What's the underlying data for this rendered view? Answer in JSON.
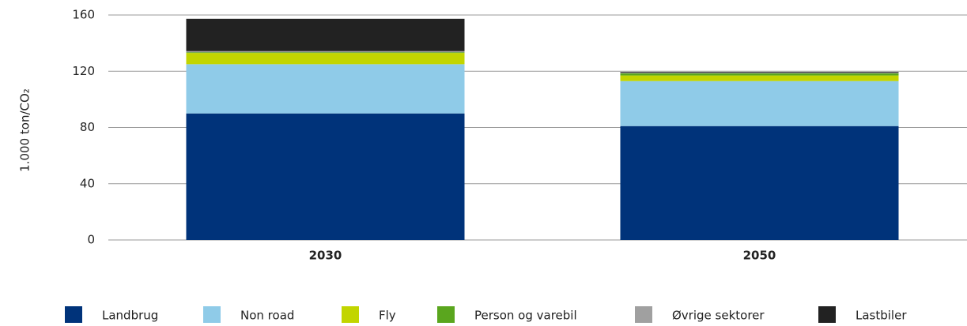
{
  "chart_data": {
    "type": "stacked_bar",
    "y_label": "1.000 ton/CO₂",
    "categories": [
      "2030",
      "2050"
    ],
    "series": [
      {
        "name": "Landbrug",
        "color": "#00337a",
        "values": [
          90,
          81
        ]
      },
      {
        "name": "Non road",
        "color": "#8fcbe8",
        "values": [
          35,
          32
        ]
      },
      {
        "name": "Fly",
        "color": "#c2d500",
        "values": [
          8,
          4
        ]
      },
      {
        "name": "Person og varebil",
        "color": "#5aa61e",
        "values": [
          0.5,
          1.5
        ]
      },
      {
        "name": "Øvrige sektorer",
        "color": "#a0a0a0",
        "values": [
          0.8,
          0.5
        ]
      },
      {
        "name": "Lastbiler",
        "color": "#222222",
        "values": [
          23,
          0.5
        ]
      }
    ],
    "ylim": [
      0,
      160
    ],
    "yticks": [
      0,
      40,
      80,
      120,
      160
    ],
    "grid": true,
    "legend": "bottom"
  }
}
